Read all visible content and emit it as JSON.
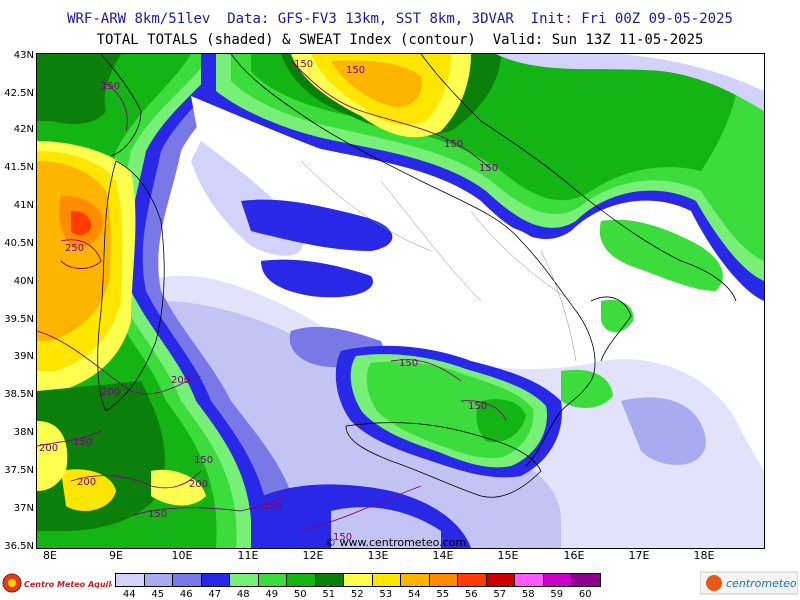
{
  "header": {
    "line1": "WRF-ARW 8km/51lev  Data: GFS-FV3 13km, SST 8km, 3DVAR  Init: Fri 00Z 09-05-2025",
    "line2": "TOTAL TOTALS (shaded) & SWEAT Index (contour)  Valid: Sun 13Z 11-05-2025"
  },
  "axes": {
    "lat_labels": [
      "43N",
      "42.5N",
      "42N",
      "41.5N",
      "41N",
      "40.5N",
      "40N",
      "39.5N",
      "39N",
      "38.5N",
      "38N",
      "37.5N",
      "37N",
      "36.5N"
    ],
    "lon_labels": [
      "8E",
      "9E",
      "10E",
      "11E",
      "12E",
      "13E",
      "14E",
      "15E",
      "16E",
      "17E",
      "18E"
    ]
  },
  "credit": "© www.centrometeo.com",
  "contour_labels": [
    "150",
    "150",
    "150",
    "150",
    "150",
    "250",
    "200",
    "200",
    "200",
    "150",
    "200",
    "150",
    "200",
    "150",
    "150",
    "150",
    "150",
    "150"
  ],
  "legend": {
    "values": [
      "44",
      "45",
      "46",
      "47",
      "48",
      "49",
      "50",
      "51",
      "52",
      "53",
      "54",
      "55",
      "56",
      "57",
      "58",
      "59",
      "60"
    ],
    "colors": [
      "#d2d2fa",
      "#aaaaf0",
      "#7878e6",
      "#2828e6",
      "#78f078",
      "#3cdc3c",
      "#14b414",
      "#0a800a",
      "#ffff50",
      "#ffe600",
      "#ffb400",
      "#ff8c00",
      "#ff3c00",
      "#c80000",
      "#ff5aff",
      "#c800c8",
      "#8c008c"
    ],
    "left_logo": "Centro Meteo Aquileiense",
    "right_logo": "centrometeo"
  }
}
